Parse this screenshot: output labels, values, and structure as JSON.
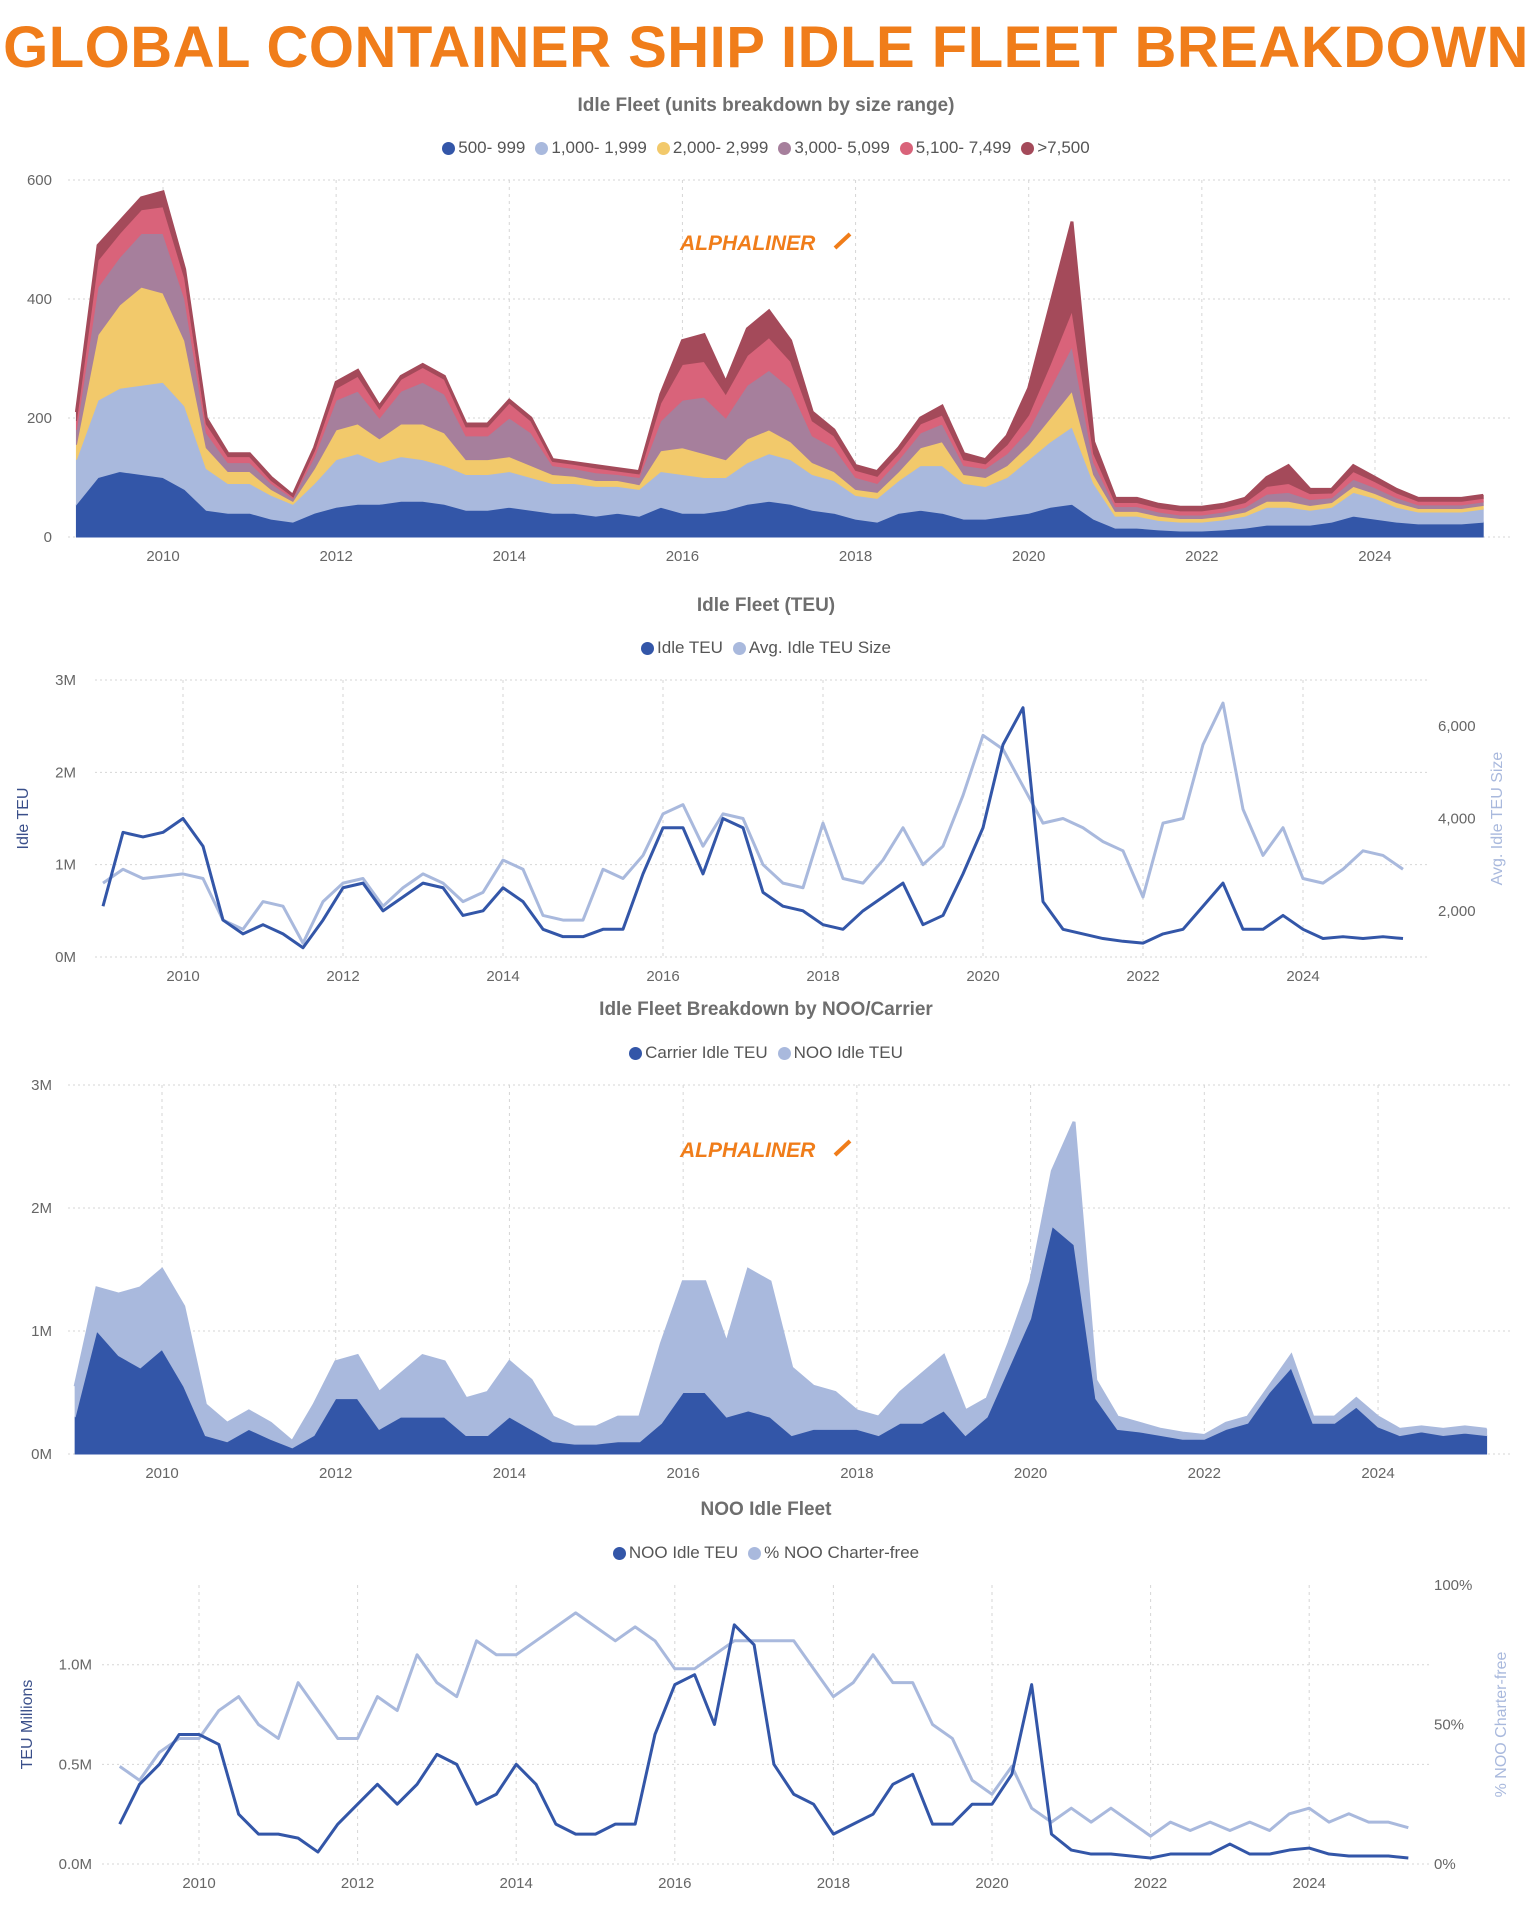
{
  "title": "GLOBAL CONTAINER SHIP IDLE FLEET BREAKDOWN",
  "logo_text": "ALPHALINER",
  "colors": {
    "title": "#f07d1a",
    "dark_blue": "#3356a8",
    "light_blue": "#a9b9dd"
  },
  "chart_data": [
    {
      "type": "area",
      "stacked": true,
      "title": "Idle Fleet (units breakdown by size range)",
      "legend_position": "top",
      "grid": true,
      "ylim": [
        0,
        600
      ],
      "y_ticks": [
        "0",
        "200",
        "400",
        "600"
      ],
      "y_tick_values": [
        0,
        200,
        400,
        600
      ],
      "x_ticks": [
        "2010",
        "2012",
        "2014",
        "2016",
        "2018",
        "2020",
        "2022",
        "2024"
      ],
      "xlim": [
        2009,
        2025.45
      ],
      "x_start": 2009,
      "x_step_years": 0.25,
      "series": [
        {
          "name": "500- 999",
          "color": "#3356a8"
        },
        {
          "name": "1,000- 1,999",
          "color": "#a9b9dd"
        },
        {
          "name": "2,000- 2,999",
          "color": "#f2c96b"
        },
        {
          "name": "3,000- 5,099",
          "color": "#a67f9c"
        },
        {
          "name": "5,100- 7,499",
          "color": "#d9637a"
        },
        {
          "name": ">7,500",
          "color": "#a44a5a"
        }
      ],
      "values_by_date": [
        [
          55,
          75,
          25,
          25,
          15,
          15
        ],
        [
          100,
          130,
          110,
          80,
          45,
          25
        ],
        [
          110,
          140,
          140,
          80,
          40,
          20
        ],
        [
          105,
          150,
          165,
          90,
          40,
          20
        ],
        [
          100,
          160,
          150,
          100,
          45,
          25
        ],
        [
          80,
          140,
          110,
          70,
          35,
          15
        ],
        [
          45,
          70,
          35,
          25,
          15,
          10
        ],
        [
          40,
          50,
          20,
          15,
          10,
          5
        ],
        [
          40,
          50,
          20,
          15,
          10,
          5
        ],
        [
          30,
          40,
          10,
          10,
          5,
          5
        ],
        [
          25,
          30,
          5,
          5,
          3,
          2
        ],
        [
          40,
          50,
          25,
          20,
          10,
          5
        ],
        [
          50,
          80,
          50,
          50,
          20,
          10
        ],
        [
          55,
          85,
          50,
          55,
          25,
          10
        ],
        [
          55,
          70,
          40,
          35,
          15,
          5
        ],
        [
          60,
          75,
          55,
          55,
          20,
          5
        ],
        [
          60,
          70,
          60,
          70,
          25,
          5
        ],
        [
          55,
          65,
          55,
          65,
          25,
          5
        ],
        [
          45,
          60,
          25,
          40,
          15,
          5
        ],
        [
          45,
          60,
          25,
          40,
          15,
          5
        ],
        [
          50,
          60,
          25,
          65,
          25,
          5
        ],
        [
          45,
          55,
          20,
          55,
          20,
          5
        ],
        [
          40,
          50,
          15,
          15,
          7,
          3
        ],
        [
          40,
          50,
          12,
          13,
          7,
          3
        ],
        [
          35,
          50,
          10,
          13,
          8,
          4
        ],
        [
          40,
          45,
          10,
          10,
          6,
          4
        ],
        [
          35,
          45,
          8,
          12,
          6,
          4
        ],
        [
          50,
          60,
          35,
          50,
          30,
          15
        ],
        [
          40,
          65,
          45,
          80,
          60,
          40
        ],
        [
          40,
          60,
          40,
          95,
          60,
          45
        ],
        [
          45,
          55,
          30,
          70,
          40,
          20
        ],
        [
          55,
          70,
          40,
          90,
          50,
          45
        ],
        [
          60,
          80,
          40,
          100,
          55,
          45
        ],
        [
          55,
          75,
          30,
          90,
          45,
          35
        ],
        [
          45,
          60,
          20,
          45,
          25,
          15
        ],
        [
          40,
          55,
          15,
          40,
          20,
          10
        ],
        [
          30,
          40,
          10,
          20,
          12,
          8
        ],
        [
          25,
          40,
          10,
          15,
          12,
          8
        ],
        [
          40,
          55,
          15,
          20,
          12,
          8
        ],
        [
          45,
          75,
          30,
          25,
          15,
          10
        ],
        [
          40,
          80,
          40,
          30,
          15,
          15
        ],
        [
          30,
          60,
          15,
          15,
          10,
          10
        ],
        [
          30,
          55,
          15,
          15,
          8,
          7
        ],
        [
          35,
          65,
          20,
          20,
          15,
          15
        ],
        [
          40,
          90,
          25,
          25,
          25,
          45
        ],
        [
          50,
          110,
          40,
          50,
          40,
          100
        ],
        [
          55,
          130,
          60,
          75,
          60,
          150
        ],
        [
          30,
          60,
          15,
          20,
          15,
          20
        ],
        [
          15,
          20,
          8,
          8,
          7,
          7
        ],
        [
          15,
          20,
          8,
          8,
          7,
          7
        ],
        [
          12,
          16,
          7,
          7,
          7,
          6
        ],
        [
          10,
          15,
          6,
          6,
          7,
          6
        ],
        [
          10,
          15,
          6,
          6,
          7,
          6
        ],
        [
          12,
          17,
          6,
          7,
          7,
          6
        ],
        [
          15,
          20,
          7,
          8,
          8,
          7
        ],
        [
          20,
          30,
          10,
          12,
          13,
          15
        ],
        [
          20,
          30,
          10,
          15,
          15,
          30
        ],
        [
          20,
          25,
          8,
          10,
          10,
          7
        ],
        [
          25,
          25,
          8,
          8,
          8,
          6
        ],
        [
          35,
          40,
          10,
          12,
          13,
          10
        ],
        [
          30,
          35,
          8,
          10,
          10,
          7
        ],
        [
          25,
          25,
          8,
          8,
          8,
          6
        ],
        [
          22,
          20,
          6,
          6,
          6,
          5
        ],
        [
          22,
          20,
          6,
          6,
          6,
          5
        ],
        [
          22,
          20,
          6,
          6,
          6,
          5
        ],
        [
          25,
          22,
          6,
          6,
          6,
          5
        ]
      ]
    },
    {
      "type": "line",
      "title": "Idle Fleet (TEU)",
      "legend_position": "top",
      "grid": true,
      "ylabel": "Idle TEU",
      "y2label": "Avg. Idle TEU Size",
      "ylim": [
        0,
        3000000
      ],
      "y_ticks": [
        "0M",
        "1M",
        "2M",
        "3M"
      ],
      "y_tick_values": [
        0,
        1000000,
        2000000,
        3000000
      ],
      "y2lim": [
        1000,
        7000
      ],
      "y2_ticks": [
        "2,000",
        "4,000",
        "6,000"
      ],
      "y2_tick_values": [
        2000,
        4000,
        6000
      ],
      "x_ticks": [
        "2010",
        "2012",
        "2014",
        "2016",
        "2018",
        "2020",
        "2022",
        "2024"
      ],
      "x_start": 2009,
      "x_step_years": 0.25,
      "series": [
        {
          "name": "Idle TEU",
          "color": "#3356a8",
          "axis": "left",
          "values": [
            550000,
            1350000,
            1300000,
            1350000,
            1500000,
            1200000,
            400000,
            250000,
            350000,
            250000,
            100000,
            400000,
            750000,
            800000,
            500000,
            650000,
            800000,
            750000,
            450000,
            500000,
            750000,
            600000,
            300000,
            220000,
            220000,
            300000,
            300000,
            900000,
            1400000,
            1400000,
            900000,
            1500000,
            1400000,
            700000,
            550000,
            500000,
            350000,
            300000,
            500000,
            650000,
            800000,
            350000,
            450000,
            900000,
            1400000,
            2300000,
            2700000,
            600000,
            300000,
            250000,
            200000,
            170000,
            150000,
            250000,
            300000,
            550000,
            800000,
            300000,
            300000,
            450000,
            300000,
            200000,
            220000,
            200000,
            220000,
            200000
          ]
        },
        {
          "name": "Avg. Idle TEU Size",
          "color": "#a9b9dd",
          "axis": "right",
          "values": [
            2600,
            2900,
            2700,
            2750,
            2800,
            2700,
            1800,
            1600,
            2200,
            2100,
            1300,
            2200,
            2600,
            2700,
            2100,
            2500,
            2800,
            2600,
            2200,
            2400,
            3100,
            2900,
            1900,
            1800,
            1800,
            2900,
            2700,
            3200,
            4100,
            4300,
            3400,
            4100,
            4000,
            3000,
            2600,
            2500,
            3900,
            2700,
            2600,
            3100,
            3800,
            3000,
            3400,
            4500,
            5800,
            5500,
            4700,
            3900,
            4000,
            3800,
            3500,
            3300,
            2300,
            3900,
            4000,
            5600,
            6500,
            4200,
            3200,
            3800,
            2700,
            2600,
            2900,
            3300,
            3200,
            2900
          ]
        }
      ]
    },
    {
      "type": "area",
      "stacked": true,
      "title": "Idle Fleet Breakdown by NOO/Carrier",
      "legend_position": "top",
      "grid": true,
      "ylim": [
        0,
        3000000
      ],
      "y_ticks": [
        "0M",
        "1M",
        "2M",
        "3M"
      ],
      "y_tick_values": [
        0,
        1000000,
        2000000,
        3000000
      ],
      "x_ticks": [
        "2010",
        "2012",
        "2014",
        "2016",
        "2018",
        "2020",
        "2022",
        "2024"
      ],
      "x_start": 2009,
      "x_step_years": 0.25,
      "series": [
        {
          "name": "Carrier Idle TEU",
          "color": "#3356a8",
          "values": [
            300000,
            1000000,
            800000,
            700000,
            850000,
            550000,
            150000,
            100000,
            200000,
            120000,
            50000,
            150000,
            450000,
            450000,
            200000,
            300000,
            300000,
            300000,
            150000,
            150000,
            300000,
            200000,
            100000,
            80000,
            80000,
            100000,
            100000,
            250000,
            500000,
            500000,
            300000,
            350000,
            300000,
            150000,
            200000,
            200000,
            200000,
            150000,
            250000,
            250000,
            350000,
            150000,
            300000,
            700000,
            1100000,
            1850000,
            1700000,
            450000,
            200000,
            180000,
            150000,
            120000,
            120000,
            200000,
            250000,
            500000,
            700000,
            250000,
            250000,
            380000,
            220000,
            150000,
            180000,
            150000,
            170000,
            150000
          ]
        },
        {
          "name": "NOO Idle TEU",
          "color": "#a9b9dd",
          "values": [
            250000,
            350000,
            500000,
            650000,
            650000,
            650000,
            250000,
            150000,
            150000,
            130000,
            50000,
            250000,
            300000,
            350000,
            300000,
            350000,
            500000,
            450000,
            300000,
            350000,
            450000,
            400000,
            200000,
            140000,
            140000,
            200000,
            200000,
            650000,
            900000,
            900000,
            600000,
            1150000,
            1100000,
            550000,
            350000,
            300000,
            150000,
            150000,
            250000,
            400000,
            450000,
            200000,
            150000,
            200000,
            300000,
            450000,
            1000000,
            150000,
            100000,
            70000,
            50000,
            50000,
            30000,
            50000,
            50000,
            50000,
            100000,
            50000,
            50000,
            70000,
            80000,
            50000,
            40000,
            50000,
            50000,
            50000
          ]
        }
      ]
    },
    {
      "type": "line",
      "title": "NOO Idle Fleet",
      "legend_position": "top",
      "grid": true,
      "ylabel": "TEU Millions",
      "y2label": "% NOO Charter-free",
      "ylim": [
        0,
        1400000
      ],
      "y_ticks": [
        "0.0M",
        "0.5M",
        "1.0M"
      ],
      "y_tick_values": [
        0,
        500000,
        1000000
      ],
      "y2lim": [
        0,
        100
      ],
      "y2_ticks": [
        "0%",
        "50%",
        "100%"
      ],
      "y2_tick_values": [
        0,
        50,
        100
      ],
      "x_ticks": [
        "2010",
        "2012",
        "2014",
        "2016",
        "2018",
        "2020",
        "2022",
        "2024"
      ],
      "x_start": 2009,
      "x_step_years": 0.25,
      "series": [
        {
          "name": "NOO Idle TEU",
          "color": "#3356a8",
          "axis": "left",
          "values": [
            200000,
            400000,
            500000,
            650000,
            650000,
            600000,
            250000,
            150000,
            150000,
            130000,
            60000,
            200000,
            300000,
            400000,
            300000,
            400000,
            550000,
            500000,
            300000,
            350000,
            500000,
            400000,
            200000,
            150000,
            150000,
            200000,
            200000,
            650000,
            900000,
            950000,
            700000,
            1200000,
            1100000,
            500000,
            350000,
            300000,
            150000,
            200000,
            250000,
            400000,
            450000,
            200000,
            200000,
            300000,
            300000,
            450000,
            900000,
            150000,
            70000,
            50000,
            50000,
            40000,
            30000,
            50000,
            50000,
            50000,
            100000,
            50000,
            50000,
            70000,
            80000,
            50000,
            40000,
            40000,
            40000,
            30000
          ]
        },
        {
          "name": "% NOO Charter-free",
          "color": "#a9b9dd",
          "axis": "right",
          "values": [
            35,
            30,
            40,
            45,
            45,
            55,
            60,
            50,
            45,
            65,
            55,
            45,
            45,
            60,
            55,
            75,
            65,
            60,
            80,
            75,
            75,
            80,
            85,
            90,
            85,
            80,
            85,
            80,
            70,
            70,
            75,
            80,
            80,
            80,
            80,
            70,
            60,
            65,
            75,
            65,
            65,
            50,
            45,
            30,
            25,
            35,
            20,
            15,
            20,
            15,
            20,
            15,
            10,
            15,
            12,
            15,
            12,
            15,
            12,
            18,
            20,
            15,
            18,
            15,
            15,
            13
          ]
        }
      ]
    }
  ]
}
